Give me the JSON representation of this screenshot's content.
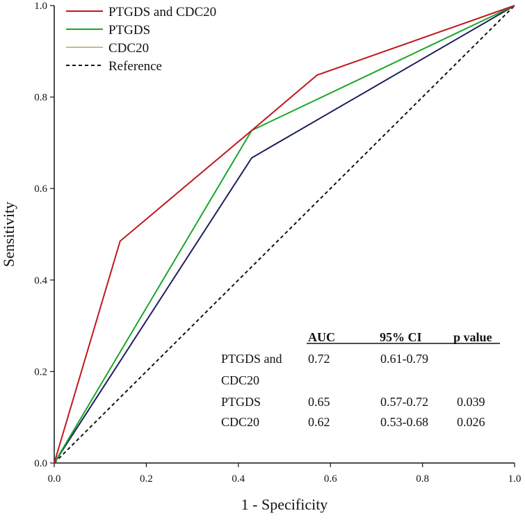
{
  "chart_data": {
    "type": "line",
    "xlabel": "1 - Specificity",
    "ylabel": "Sensitivity",
    "xlim": [
      0,
      1
    ],
    "ylim": [
      0,
      1
    ],
    "x_ticks": [
      "0.0",
      "0.2",
      "0.4",
      "0.6",
      "0.8",
      "1.0"
    ],
    "y_ticks": [
      "0.0",
      "0.2",
      "0.4",
      "0.6",
      "0.8",
      "1.0"
    ],
    "grid": false,
    "legend_position": "top-left",
    "series": [
      {
        "name": "PTGDS and CDC20",
        "color": "#c0161e",
        "dash": "solid",
        "points": [
          [
            0,
            0
          ],
          [
            0.143,
            0.485
          ],
          [
            0.429,
            0.727
          ],
          [
            0.571,
            0.848
          ],
          [
            1,
            1
          ]
        ]
      },
      {
        "name": "PTGDS",
        "color": "#1aa626",
        "dash": "solid",
        "points": [
          [
            0,
            0
          ],
          [
            0.429,
            0.727
          ],
          [
            1,
            1
          ]
        ]
      },
      {
        "name": "CDC20",
        "color": "#1b1f5c",
        "legend_color": "#c9b98a",
        "dash": "solid",
        "points": [
          [
            0,
            0
          ],
          [
            0.429,
            0.667
          ],
          [
            1,
            1
          ]
        ]
      },
      {
        "name": "Reference",
        "color": "#111111",
        "dash": "dashed",
        "points": [
          [
            0,
            0
          ],
          [
            1,
            1
          ]
        ]
      }
    ],
    "stats_table": {
      "headers": [
        "AUC",
        "95% CI",
        "p value"
      ],
      "rows": [
        {
          "label_line1": "PTGDS and",
          "label_line2": "CDC20",
          "auc": "0.72",
          "ci": "0.61-0.79",
          "p": ""
        },
        {
          "label_line1": "PTGDS",
          "label_line2": "",
          "auc": "0.65",
          "ci": "0.57-0.72",
          "p": "0.039"
        },
        {
          "label_line1": "CDC20",
          "label_line2": "",
          "auc": "0.62",
          "ci": "0.53-0.68",
          "p": "0.026"
        }
      ]
    }
  }
}
